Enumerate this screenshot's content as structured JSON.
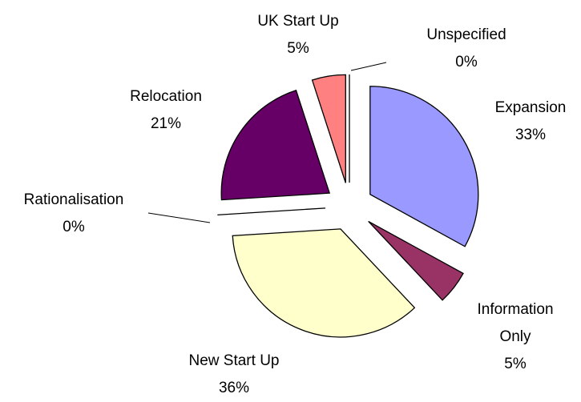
{
  "chart_data": {
    "type": "pie",
    "categories": [
      "Expansion",
      "Information Only",
      "New Start Up",
      "Rationalisation",
      "Relocation",
      "UK Start Up",
      "Unspecified"
    ],
    "values": [
      33,
      5,
      36,
      0,
      21,
      5,
      0
    ],
    "value_labels": [
      "33%",
      "5%",
      "36%",
      "0%",
      "21%",
      "5%",
      "0%"
    ],
    "colors": [
      "#9999ff",
      "#993366",
      "#ffffcc",
      "#ffffff",
      "#660066",
      "#ff8080",
      "#ccffff"
    ]
  }
}
